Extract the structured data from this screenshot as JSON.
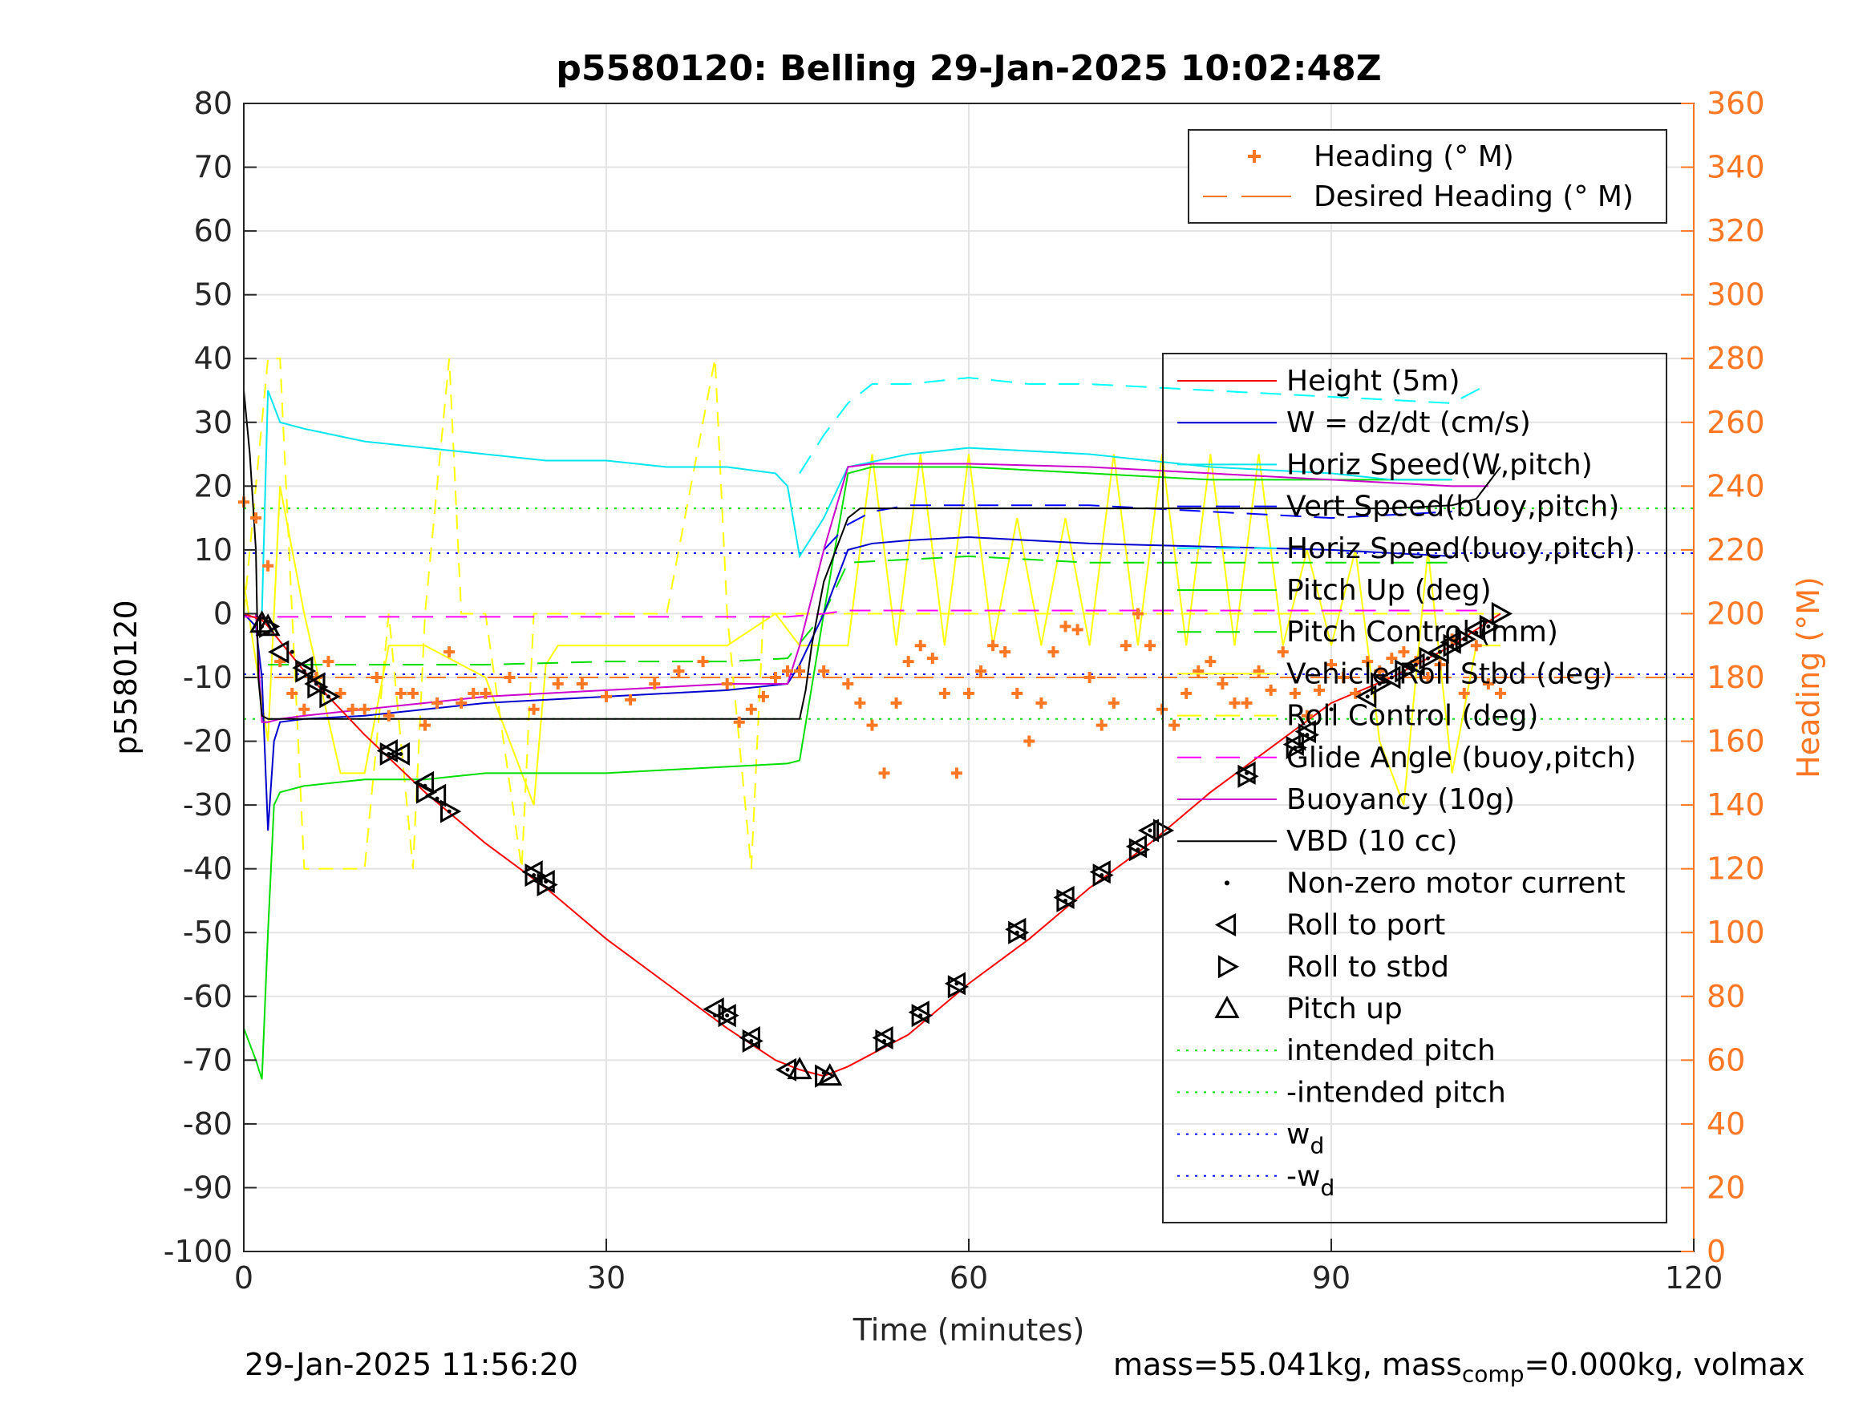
{
  "chart_data": {
    "type": "line",
    "title": "p5580120: Belling 29-Jan-2025 10:02:48Z",
    "xlabel": "Time (minutes)",
    "ylabel_left": "p5580120",
    "ylabel_right": "Heading (°M)",
    "xlim": [
      0,
      120
    ],
    "ylim_left": [
      -100,
      80
    ],
    "ylim_right": [
      0,
      360
    ],
    "x_ticks": [
      "0",
      "30",
      "60",
      "90",
      "120"
    ],
    "y_left_ticks": [
      "80",
      "70",
      "60",
      "50",
      "40",
      "30",
      "20",
      "10",
      "0",
      "-10",
      "-20",
      "-30",
      "-40",
      "-50",
      "-60",
      "-70",
      "-80",
      "-90",
      "-100"
    ],
    "y_right_ticks": [
      "360",
      "340",
      "320",
      "300",
      "280",
      "260",
      "240",
      "220",
      "200",
      "180",
      "160",
      "140",
      "120",
      "100",
      "80",
      "60",
      "40",
      "20",
      "0"
    ],
    "grid": true,
    "colors": {
      "height": "#ff0000",
      "w": "#0000cc",
      "horiz_speed_w": "#00e5ee",
      "vert_speed": "#0000ff",
      "horiz_speed_buoy": "#00ffff",
      "pitch_up": "#00dd00",
      "pitch_control": "#00dd00",
      "vehicle_roll": "#ffff00",
      "roll_control": "#ffff00",
      "glide_angle": "#ff00ff",
      "buoyancy": "#cc00cc",
      "vbd": "#000000",
      "heading": "#ff7722",
      "intended_pitch": "#00dd00",
      "wd": "#0000ff",
      "right_axis": "#ff7722"
    },
    "heading_legend": [
      {
        "label": "Heading (° M)",
        "marker": "plus"
      },
      {
        "label": "Desired Heading (° M)",
        "marker": "dash"
      }
    ],
    "main_legend": [
      {
        "label": "Height (5m)",
        "style": "solid",
        "color": "#ff0000"
      },
      {
        "label": "W = dz/dt (cm/s)",
        "style": "solid",
        "color": "#0000cc"
      },
      {
        "label": "Horiz Speed(W,pitch)",
        "style": "solid",
        "color": "#00e5ee"
      },
      {
        "label": "Vert Speed(buoy,pitch)",
        "style": "dashed",
        "color": "#0000ff"
      },
      {
        "label": "Horiz Speed(buoy,pitch)",
        "style": "dashed",
        "color": "#00ffff"
      },
      {
        "label": "Pitch Up (deg)",
        "style": "solid",
        "color": "#00dd00"
      },
      {
        "label": "Pitch Control (mm)",
        "style": "dashed",
        "color": "#00dd00"
      },
      {
        "label": "Vehicle Roll Stbd (deg)",
        "style": "solid",
        "color": "#ffff00"
      },
      {
        "label": "Roll Control (deg)",
        "style": "dashed",
        "color": "#ffff00"
      },
      {
        "label": "Glide Angle (buoy,pitch)",
        "style": "dashed",
        "color": "#ff00ff"
      },
      {
        "label": "Buoyancy (10g)",
        "style": "solid",
        "color": "#cc00cc"
      },
      {
        "label": "VBD (10 cc)",
        "style": "solid",
        "color": "#000000"
      },
      {
        "label": "Non-zero motor current",
        "style": "dot",
        "color": "#000000"
      },
      {
        "label": "Roll to port",
        "style": "tri-left",
        "color": "#000000"
      },
      {
        "label": "Roll to stbd",
        "style": "tri-right",
        "color": "#000000"
      },
      {
        "label": "Pitch up",
        "style": "tri-up",
        "color": "#000000"
      },
      {
        "label": "intended pitch",
        "style": "dotted",
        "color": "#00dd00"
      },
      {
        "label": "-intended pitch",
        "style": "dotted",
        "color": "#00dd00"
      },
      {
        "label": "w",
        "sub": "d",
        "style": "dotted",
        "color": "#0000ff"
      },
      {
        "label": "-w",
        "sub": "d",
        "style": "dotted",
        "color": "#0000ff"
      }
    ],
    "constants": {
      "intended_pitch": 16.5,
      "neg_intended_pitch": -16.5,
      "wd": 9.5,
      "neg_wd": -9.5
    },
    "series": {
      "height": {
        "x": [
          0,
          1.5,
          2,
          5,
          10,
          15,
          20,
          25,
          30,
          35,
          40,
          44,
          46,
          48,
          50,
          55,
          60,
          65,
          70,
          75,
          80,
          85,
          90,
          95,
          100,
          104
        ],
        "y": [
          0,
          -1,
          -2,
          -9,
          -19,
          -28,
          -36,
          -43,
          -51,
          -58,
          -65,
          -70,
          -71.5,
          -72.5,
          -71,
          -66,
          -58,
          -51,
          -43,
          -36,
          -28,
          -21,
          -14,
          -10,
          -5,
          0
        ]
      },
      "w": {
        "x": [
          0,
          1,
          1.5,
          2,
          2.5,
          3,
          5,
          10,
          15,
          20,
          30,
          40,
          45,
          46,
          48,
          50,
          52,
          55,
          60,
          70,
          80,
          90,
          95,
          100
        ],
        "y": [
          0,
          -2,
          -10,
          -34,
          -20,
          -17,
          -16.5,
          -16,
          -15,
          -14,
          -13,
          -12,
          -11,
          -8,
          0,
          10,
          11,
          11.5,
          12,
          11,
          10.5,
          10,
          9.5,
          9
        ]
      },
      "horiz_speed_w": {
        "x": [
          1.5,
          2,
          3,
          5,
          10,
          15,
          20,
          25,
          30,
          35,
          40,
          44,
          45,
          46,
          47,
          48,
          50,
          55,
          60,
          70,
          80,
          90,
          95,
          100
        ],
        "y": [
          0,
          35,
          30,
          29,
          27,
          26,
          25,
          24,
          24,
          23,
          23,
          22,
          20,
          9,
          12,
          15,
          23,
          25,
          26,
          25,
          23,
          22,
          21,
          21
        ]
      },
      "vert_speed": {
        "x": [
          48,
          50,
          52,
          55,
          60,
          65,
          70,
          80,
          90,
          100
        ],
        "y": [
          10,
          14,
          16,
          17,
          17,
          17,
          17,
          16,
          15,
          16
        ]
      },
      "horiz_speed_buoy": {
        "x": [
          46,
          48,
          50,
          52,
          55,
          60,
          65,
          70,
          80,
          90,
          100,
          103
        ],
        "y": [
          22,
          28,
          33,
          36,
          36,
          37,
          36,
          36,
          35,
          34,
          33,
          36
        ]
      },
      "pitch_up": {
        "x": [
          0,
          1,
          1.5,
          2,
          2.5,
          3,
          5,
          10,
          15,
          20,
          30,
          40,
          45,
          46,
          48,
          50,
          52,
          55,
          60,
          70,
          80,
          90,
          100
        ],
        "y": [
          -65,
          -70,
          -73,
          -50,
          -30,
          -28,
          -27,
          -26,
          -26,
          -25,
          -25,
          -24,
          -23.5,
          -23,
          0,
          22,
          23,
          23,
          23,
          22,
          21,
          21,
          21
        ]
      },
      "pitch_control": {
        "x": [
          2,
          10,
          20,
          30,
          40,
          45,
          48,
          50,
          60,
          70,
          80,
          90,
          100
        ],
        "y": [
          -8,
          -8,
          -8,
          -7.5,
          -7.5,
          -7,
          0,
          8,
          9,
          8,
          8,
          8,
          8
        ]
      },
      "vehicle_roll": {
        "x": [
          0,
          2,
          3,
          5,
          8,
          10,
          12,
          15,
          18,
          20,
          24,
          25,
          26,
          30,
          35,
          40,
          44,
          46,
          48,
          50,
          52,
          54,
          56,
          58,
          60,
          62,
          64,
          66,
          68,
          70,
          72,
          74,
          76,
          78,
          80,
          82,
          84,
          86,
          88,
          90,
          92,
          94,
          96,
          98,
          100,
          102,
          104
        ],
        "y": [
          5,
          -20,
          20,
          0,
          -25,
          -25,
          -5,
          -5,
          -8,
          -10,
          -30,
          -8,
          -5,
          -5,
          -5,
          -5,
          0,
          -5,
          -5,
          -5,
          25,
          -5,
          25,
          -5,
          25,
          -5,
          15,
          -5,
          15,
          -5,
          25,
          -5,
          25,
          -5,
          25,
          -5,
          25,
          -5,
          10,
          -5,
          10,
          -20,
          -30,
          10,
          -25,
          -5,
          -5
        ]
      },
      "roll_control": {
        "x": [
          0,
          2,
          3,
          4,
          5,
          10,
          12,
          14,
          15,
          17,
          18,
          20,
          23,
          24,
          25,
          30,
          35,
          39,
          40,
          42,
          43,
          44,
          45,
          50,
          55,
          60,
          65,
          70,
          75,
          80,
          85,
          90,
          95,
          100,
          104
        ],
        "y": [
          0,
          40,
          40,
          0,
          -40,
          -40,
          0,
          -40,
          0,
          40,
          0,
          0,
          -40,
          0,
          0,
          0,
          0,
          40,
          0,
          -40,
          0,
          0,
          0,
          0,
          0,
          0,
          0,
          0,
          0,
          0,
          0,
          0,
          0,
          0,
          0
        ]
      },
      "glide_angle": {
        "x": [
          0,
          10,
          20,
          30,
          40,
          45,
          48,
          50,
          60,
          70,
          80,
          90,
          100,
          103
        ],
        "y": [
          -0.5,
          -0.5,
          -0.5,
          -0.5,
          -0.5,
          -0.5,
          0,
          0.5,
          0.5,
          0.5,
          0.5,
          0.5,
          0.5,
          0.5
        ]
      },
      "buoyancy": {
        "x": [
          1,
          1.5,
          2,
          3,
          5,
          10,
          15,
          20,
          30,
          40,
          45,
          46,
          48,
          50,
          52,
          55,
          60,
          70,
          80,
          90,
          100,
          103
        ],
        "y": [
          0,
          -17,
          -17,
          -16.5,
          -16,
          -15,
          -14,
          -13,
          -12,
          -11,
          -11,
          -5,
          10,
          23,
          23.5,
          23.5,
          23.5,
          23,
          22,
          21,
          20,
          20
        ]
      },
      "vbd": {
        "x": [
          0,
          0.5,
          1,
          1.2,
          1.5,
          2,
          5,
          10,
          20,
          30,
          40,
          45,
          46,
          46.5,
          47,
          48,
          50,
          51,
          52,
          60,
          70,
          80,
          90,
          95,
          100,
          102,
          104
        ],
        "y": [
          35,
          25,
          10,
          -10,
          -16,
          -16.5,
          -16.5,
          -16.5,
          -16.5,
          -16.5,
          -16.5,
          -16.5,
          -16.5,
          -12,
          -5,
          5,
          15,
          16.5,
          16.5,
          16.5,
          16.5,
          16.5,
          16.5,
          16.5,
          17,
          18,
          23
        ]
      },
      "heading": {
        "x": [
          0,
          1,
          2,
          3,
          4,
          5,
          6,
          7,
          8,
          9,
          10,
          11,
          12,
          13,
          14,
          15,
          16,
          17,
          18,
          19,
          20,
          22,
          24,
          26,
          28,
          30,
          32,
          34,
          36,
          38,
          40,
          41,
          42,
          43,
          44,
          45,
          46,
          48,
          50,
          51,
          52,
          53,
          54,
          55,
          56,
          57,
          58,
          59,
          60,
          61,
          62,
          63,
          64,
          65,
          66,
          67,
          68,
          69,
          70,
          71,
          72,
          73,
          74,
          75,
          76,
          77,
          78,
          79,
          80,
          81,
          82,
          83,
          84,
          85,
          86,
          87,
          88,
          89,
          90,
          91,
          92,
          93,
          94,
          95,
          96,
          97,
          98,
          99,
          100,
          101,
          102,
          103,
          104
        ],
        "y": [
          235,
          230,
          215,
          185,
          175,
          170,
          180,
          185,
          175,
          170,
          170,
          180,
          168,
          175,
          175,
          165,
          172,
          188,
          172,
          175,
          175,
          180,
          170,
          178,
          178,
          174,
          173,
          178,
          182,
          185,
          178,
          166,
          170,
          174,
          180,
          182,
          182,
          182,
          178,
          172,
          165,
          150,
          172,
          185,
          190,
          186,
          175,
          150,
          175,
          182,
          190,
          188,
          175,
          160,
          172,
          188,
          196,
          195,
          180,
          165,
          172,
          190,
          200,
          190,
          170,
          165,
          175,
          182,
          185,
          178,
          172,
          172,
          182,
          176,
          188,
          175,
          168,
          176,
          184,
          180,
          175,
          185,
          182,
          186,
          188,
          185,
          180,
          184,
          192,
          175,
          190,
          178,
          175
        ]
      },
      "desired_heading": {
        "x": [
          0,
          120
        ],
        "y": [
          180,
          180
        ]
      },
      "motor_current": {
        "x": [
          1.5,
          2,
          4,
          5,
          6,
          7,
          12,
          13,
          15,
          16,
          17,
          24,
          25,
          39,
          40,
          42,
          45,
          48,
          53,
          56,
          59,
          64,
          68,
          71,
          74,
          75,
          83,
          87,
          88,
          90,
          93,
          94,
          95,
          96,
          97,
          98,
          99,
          100,
          101,
          102,
          103
        ],
        "y": [
          -2,
          -3,
          -6,
          -9,
          -11,
          -13,
          -22,
          -22,
          -27,
          -29,
          -31,
          -41,
          -42,
          -63,
          -63,
          -67,
          -71.5,
          -72,
          -67,
          -63,
          -58,
          -50,
          -45,
          -41,
          -37,
          -34,
          -25,
          -21,
          -19,
          -15,
          -13,
          -11,
          -10,
          -9,
          -8,
          -7,
          -6,
          -5,
          -4,
          -3,
          -2
        ]
      },
      "roll_port": {
        "x": [
          3,
          5,
          6,
          12,
          13,
          15,
          16,
          24,
          25,
          39,
          40,
          42,
          45,
          53,
          56,
          59,
          64,
          68,
          71,
          74,
          75,
          83,
          87,
          88,
          93,
          95,
          97,
          99,
          100,
          102
        ],
        "y": [
          -6,
          -8.5,
          -11,
          -21.5,
          -22,
          -26.5,
          -28.5,
          -40.5,
          -42,
          -62,
          -63,
          -66.5,
          -71.5,
          -66.5,
          -62.5,
          -58,
          -49.5,
          -44.5,
          -40.5,
          -36.5,
          -34,
          -25,
          -20.5,
          -18.5,
          -13,
          -10,
          -8,
          -6,
          -4.5,
          -2.5
        ]
      },
      "roll_stbd": {
        "x": [
          2,
          5,
          6,
          7,
          12,
          15,
          17,
          24,
          25,
          40,
          42,
          48,
          53,
          56,
          59,
          64,
          68,
          71,
          74,
          76,
          83,
          87,
          88,
          94,
          96,
          98,
          100,
          101,
          103,
          104
        ],
        "y": [
          -2,
          -9,
          -11.5,
          -13,
          -22,
          -28,
          -31,
          -41,
          -42.5,
          -63,
          -67,
          -72.5,
          -67,
          -63,
          -58.5,
          -50,
          -45,
          -41,
          -37,
          -34,
          -25.5,
          -21,
          -19,
          -11,
          -9,
          -7,
          -5,
          -4,
          -2,
          0
        ]
      },
      "pitch_up_marker": {
        "x": [
          1.5,
          2,
          46,
          48.5
        ],
        "y": [
          -1.5,
          -2,
          -71.5,
          -72.5
        ]
      }
    }
  },
  "footer": {
    "timestamp": "29-Jan-2025 11:56:20",
    "mass_prefix": "mass=55.041kg, mass",
    "mass_sub": "comp",
    "mass_suffix": "=0.000kg, volmax"
  }
}
